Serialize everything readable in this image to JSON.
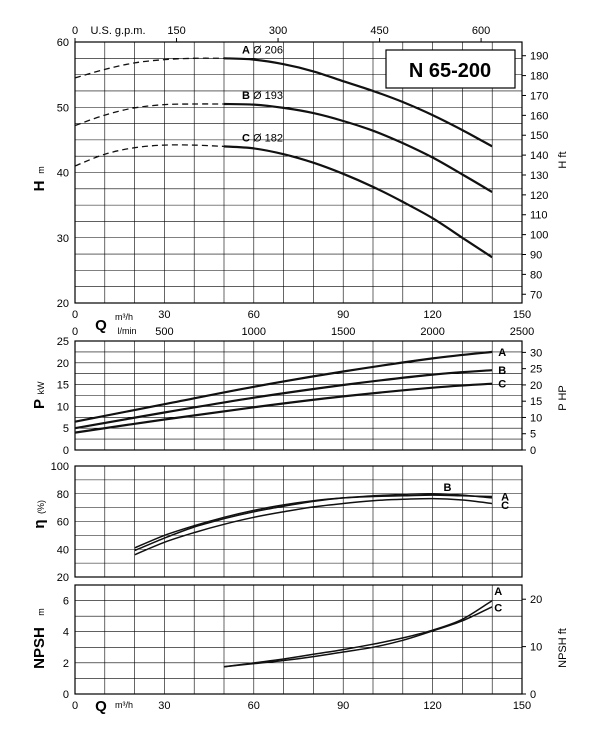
{
  "chart_data": {
    "type": "line",
    "title": "N 65-200",
    "x": {
      "quantity": "Q",
      "unit": "m³/h",
      "range": [
        0,
        150
      ],
      "ticks": [
        0,
        30,
        60,
        90,
        120,
        150
      ],
      "secondary_top": {
        "unit": "U.S. g.p.m.",
        "ticks": [
          0,
          150,
          300,
          450,
          600
        ]
      },
      "secondary_lmin": {
        "unit": "l/min",
        "ticks": [
          0,
          500,
          1000,
          1500,
          2000,
          2500
        ]
      }
    },
    "panels": [
      {
        "id": "head",
        "ylabel": "H",
        "yunit": "m",
        "ylim": [
          20,
          60
        ],
        "yticks": [
          20,
          30,
          40,
          50,
          60
        ],
        "y2label": "H ft",
        "y2lim": [
          65.6,
          196.9
        ],
        "y2ticks": [
          70,
          80,
          90,
          100,
          110,
          120,
          130,
          140,
          150,
          160,
          170,
          180,
          190
        ],
        "series": [
          {
            "name": "A",
            "label_suffix": "Ø 206",
            "x": [
              50,
              60,
              70,
              80,
              90,
              100,
              110,
              120,
              130,
              140
            ],
            "y": [
              57.5,
              57.3,
              56.6,
              55.5,
              54.0,
              52.5,
              50.8,
              48.8,
              46.5,
              44.0
            ],
            "extension_x": [
              0,
              10,
              20,
              30,
              40,
              50
            ],
            "extension_y": [
              54.5,
              55.8,
              56.8,
              57.3,
              57.5,
              57.5
            ]
          },
          {
            "name": "B",
            "label_suffix": "Ø 193",
            "x": [
              50,
              60,
              70,
              80,
              90,
              100,
              110,
              120,
              130,
              140
            ],
            "y": [
              50.5,
              50.4,
              49.9,
              49.1,
              47.9,
              46.4,
              44.5,
              42.3,
              39.7,
              37.0
            ],
            "extension_x": [
              0,
              10,
              20,
              30,
              40,
              50
            ],
            "extension_y": [
              47.2,
              48.8,
              49.9,
              50.4,
              50.5,
              50.5
            ]
          },
          {
            "name": "C",
            "label_suffix": "Ø 182",
            "x": [
              50,
              60,
              70,
              80,
              90,
              100,
              110,
              120,
              130,
              140
            ],
            "y": [
              44.0,
              43.7,
              42.8,
              41.5,
              39.8,
              37.8,
              35.5,
              33.0,
              30.0,
              27.0
            ],
            "extension_x": [
              0,
              10,
              20,
              30,
              40,
              50
            ],
            "extension_y": [
              41.0,
              42.8,
              43.8,
              44.2,
              44.2,
              44.0
            ]
          }
        ]
      },
      {
        "id": "power",
        "ylabel": "P",
        "yunit": "kW",
        "ylim": [
          0,
          25
        ],
        "yticks": [
          0,
          5,
          10,
          15,
          20,
          25
        ],
        "y2label": "P HP",
        "y2lim": [
          0,
          33.5
        ],
        "y2ticks": [
          0,
          5,
          10,
          15,
          20,
          25,
          30
        ],
        "series": [
          {
            "name": "A",
            "x": [
              0,
              30,
              60,
              90,
              120,
              140
            ],
            "y": [
              6.5,
              10.5,
              14.5,
              18.0,
              21.0,
              22.5
            ]
          },
          {
            "name": "B",
            "x": [
              0,
              30,
              60,
              90,
              120,
              140
            ],
            "y": [
              5.0,
              8.6,
              12.0,
              14.9,
              17.3,
              18.3
            ]
          },
          {
            "name": "C",
            "x": [
              0,
              30,
              60,
              90,
              120,
              140
            ],
            "y": [
              4.0,
              7.0,
              9.8,
              12.3,
              14.3,
              15.2
            ]
          }
        ]
      },
      {
        "id": "efficiency",
        "ylabel": "η",
        "yunit": "(%)",
        "ylim": [
          20,
          100
        ],
        "yticks": [
          20,
          40,
          60,
          80,
          100
        ],
        "series": [
          {
            "name": "A",
            "x": [
              20,
              30,
              40,
              50,
              60,
              70,
              80,
              90,
              100,
              110,
              120,
              130,
              140
            ],
            "y": [
              41,
              50,
              57,
              63,
              68,
              72,
              75,
              77,
              78,
              78.5,
              79,
              78.5,
              78
            ]
          },
          {
            "name": "B",
            "x": [
              20,
              30,
              40,
              50,
              60,
              70,
              80,
              90,
              100,
              110,
              120,
              130,
              140
            ],
            "y": [
              39,
              48,
              56,
              62,
              67,
              71,
              74.5,
              77,
              78.5,
              79.5,
              80,
              79,
              77
            ]
          },
          {
            "name": "C",
            "x": [
              20,
              30,
              40,
              50,
              60,
              70,
              80,
              90,
              100,
              110,
              120,
              130,
              140
            ],
            "y": [
              36,
              45,
              52,
              58,
              63,
              67,
              70.5,
              73,
              75,
              76,
              76.5,
              75.5,
              73
            ]
          }
        ]
      },
      {
        "id": "npsh",
        "ylabel": "NPSH",
        "yunit": "m",
        "ylim": [
          0,
          7
        ],
        "yticks": [
          0,
          2,
          4,
          6
        ],
        "y2label": "NPSH ft",
        "y2lim": [
          0,
          23
        ],
        "y2ticks": [
          0,
          10,
          20
        ],
        "series": [
          {
            "name": "A",
            "x": [
              50,
              60,
              70,
              80,
              90,
              100,
              110,
              120,
              130,
              140
            ],
            "y": [
              1.75,
              2.0,
              2.25,
              2.55,
              2.85,
              3.2,
              3.6,
              4.1,
              4.8,
              6.0
            ]
          },
          {
            "name": "C",
            "x": [
              50,
              60,
              70,
              80,
              90,
              100,
              110,
              120,
              130,
              140
            ],
            "y": [
              1.75,
              1.95,
              2.15,
              2.4,
              2.7,
              3.0,
              3.45,
              4.05,
              4.7,
              5.6
            ]
          }
        ]
      }
    ],
    "text": {
      "q_symbol": "Q",
      "q_unit_m3h": "m³/h",
      "l_min": "l/min",
      "us_gpm": "U.S. g.p.m.",
      "h_symbol": "H",
      "h_unit": "m",
      "h_ft": "H ft",
      "p_symbol": "P",
      "p_unit": "kW",
      "p_hp": "P HP",
      "eta_symbol": "η",
      "eta_unit": "(%)",
      "npsh_symbol": "NPSH",
      "npsh_unit": "m",
      "npsh_ft": "NPSH ft"
    }
  }
}
